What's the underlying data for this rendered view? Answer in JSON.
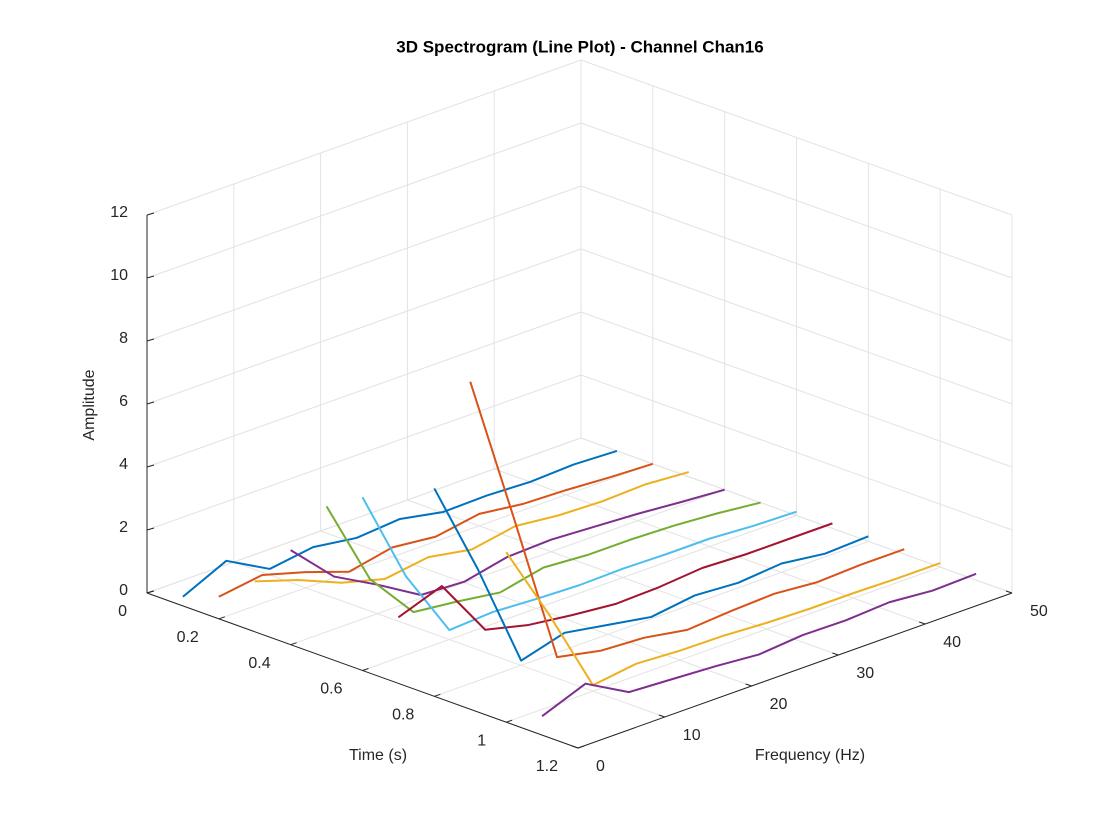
{
  "chart_data": {
    "type": "line3d",
    "title": "3D Spectrogram (Line Plot) - Channel Chan16",
    "xlabel": "Time (s)",
    "ylabel": "Frequency (Hz)",
    "zlabel": "Amplitude",
    "xlim": [
      0,
      1.2
    ],
    "xticks": [
      0,
      0.2,
      0.4,
      0.6,
      0.8,
      1,
      1.2
    ],
    "ylim": [
      0,
      50
    ],
    "yticks": [
      0,
      10,
      20,
      30,
      40,
      50
    ],
    "zlim": [
      0,
      12
    ],
    "zticks": [
      0,
      2,
      4,
      6,
      8,
      10,
      12
    ],
    "grid": true,
    "frequencies": [
      0,
      5,
      10,
      15,
      20,
      25,
      30,
      35,
      40,
      45,
      50
    ],
    "series": [
      {
        "time": 0.1,
        "color": "#0072BD",
        "values": [
          0.29,
          0.94,
          0.19,
          0.39,
          0.19,
          0.3,
          0.03,
          0.06,
          0,
          0.06,
          0
        ]
      },
      {
        "time": 0.2,
        "color": "#D95319",
        "values": [
          0.7,
          0.9,
          0.5,
          0.02,
          0.3,
          0.15,
          0.38,
          0.2,
          0.15,
          0.06,
          0
        ]
      },
      {
        "time": 0.3,
        "color": "#EDB120",
        "values": [
          1.6,
          1.15,
          0.57,
          0.2,
          0.4,
          0.15,
          0.4,
          0.25,
          0.2,
          0.25,
          0.15
        ]
      },
      {
        "time": 0.4,
        "color": "#7E2F8E",
        "values": [
          3.0,
          1.67,
          0.92,
          0.1,
          0.03,
          0.33,
          0.38,
          0.3,
          0.22,
          0.1,
          0
        ]
      },
      {
        "time": 0.5,
        "color": "#77AC30",
        "values": [
          4.8,
          2.0,
          0.46,
          0.3,
          0.1,
          0.4,
          0.3,
          0.3,
          0.25,
          0.15,
          0
        ]
      },
      {
        "time": 0.6,
        "color": "#4DBEEE",
        "values": [
          5.5,
          2.5,
          0.3,
          0.38,
          0.3,
          0.25,
          0.28,
          0.25,
          0.25,
          0.16,
          0.12
        ]
      },
      {
        "time": 0.7,
        "color": "#A2142F",
        "values": [
          2.1,
          2.6,
          0.72,
          0.38,
          0.2,
          0.06,
          0.1,
          0.22,
          0.16,
          0.16,
          0.16
        ]
      },
      {
        "time": 0.8,
        "color": "#0072BD",
        "values": [
          6.6,
          3.55,
          0.15,
          0.54,
          0.3,
          0.06,
          0.25,
          0.16,
          0.28,
          0.1,
          0.16
        ]
      },
      {
        "time": 0.9,
        "color": "#D95319",
        "values": [
          10.4,
          5.6,
          0.67,
          0.38,
          0.3,
          0.06,
          0.16,
          0.22,
          0.1,
          0.16,
          0.16
        ]
      },
      {
        "time": 1.0,
        "color": "#EDB120",
        "values": [
          5.4,
          2.9,
          0.19,
          0.38,
          0.3,
          0.28,
          0.2,
          0.16,
          0.16,
          0.13,
          0.13
        ]
      },
      {
        "time": 1.1,
        "color": "#7E2F8E",
        "values": [
          0.6,
          1.14,
          0.38,
          0.3,
          0.22,
          0.1,
          0.22,
          0.2,
          0.28,
          0.16,
          0.2
        ]
      }
    ]
  }
}
